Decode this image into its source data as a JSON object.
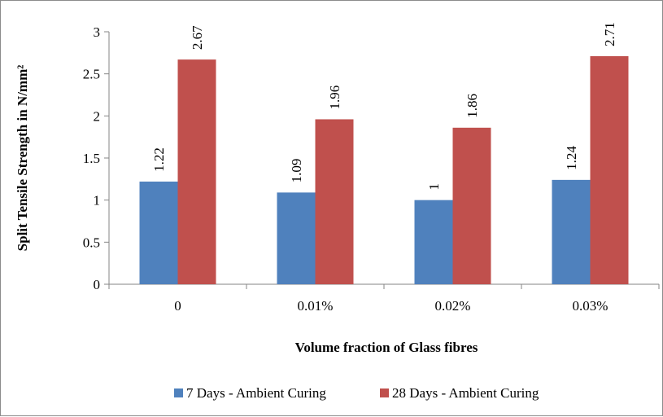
{
  "chart_data": {
    "type": "bar",
    "categories": [
      "0",
      "0.01%",
      "0.02%",
      "0.03%"
    ],
    "series": [
      {
        "name": "7 Days - Ambient Curing",
        "values": [
          1.22,
          1.09,
          1,
          1.24
        ],
        "labels": [
          "1.22",
          "1.09",
          "1",
          "1.24"
        ],
        "color": "#4f81bd"
      },
      {
        "name": "28 Days - Ambient Curing",
        "values": [
          2.67,
          1.96,
          1.86,
          2.71
        ],
        "labels": [
          "2.67",
          "1.96",
          "1.86",
          "2.71"
        ],
        "color": "#c0504d"
      }
    ],
    "xlabel": "Volume fraction of Glass fibres",
    "ylabel": "Split Tensile Strength in N/mm²",
    "ylim": [
      0,
      3
    ],
    "yticks": [
      0,
      0.5,
      1,
      1.5,
      2,
      2.5,
      3
    ],
    "ytick_labels": [
      "0",
      "0.5",
      "1",
      "1.5",
      "2",
      "2.5",
      "3"
    ],
    "grid": false,
    "legend_position": "bottom"
  }
}
